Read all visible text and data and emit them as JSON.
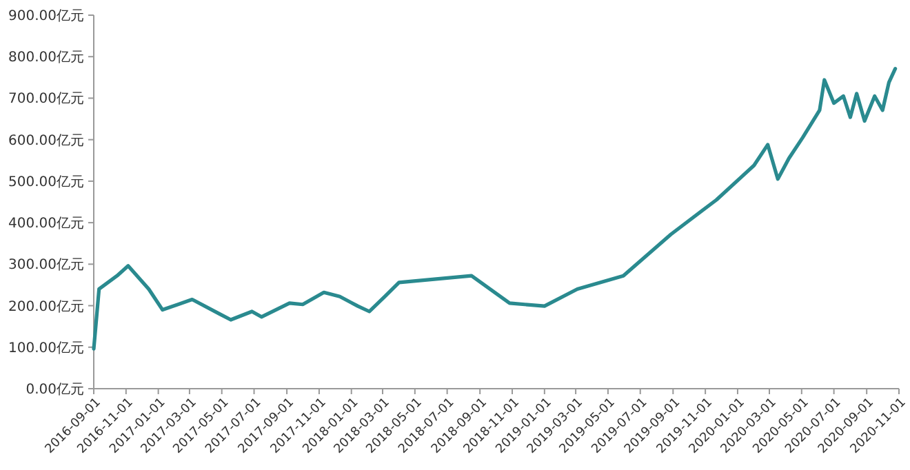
{
  "chart_data": {
    "type": "line",
    "x": [
      "2016-09-01",
      "2016-09-11",
      "2016-10-15",
      "2016-11-05",
      "2016-12-14",
      "2017-01-09",
      "2017-03-06",
      "2017-04-27",
      "2017-05-18",
      "2017-06-27",
      "2017-07-15",
      "2017-09-06",
      "2017-10-01",
      "2017-11-10",
      "2017-12-10",
      "2018-01-13",
      "2018-02-04",
      "2018-03-05",
      "2018-04-01",
      "2018-08-16",
      "2018-10-27",
      "2019-01-01",
      "2019-03-04",
      "2019-05-30",
      "2019-08-28",
      "2019-11-22",
      "2020-02-01",
      "2020-02-27",
      "2020-03-17",
      "2020-04-07",
      "2020-05-03",
      "2020-06-04",
      "2020-06-13",
      "2020-07-01",
      "2020-07-19",
      "2020-08-01",
      "2020-08-13",
      "2020-08-28",
      "2020-09-16",
      "2020-10-01",
      "2020-10-13",
      "2020-10-25"
    ],
    "series": [
      {
        "color": "#2a8a8f",
        "values": [
          96,
          240,
          272,
          296,
          240,
          190,
          215,
          180,
          166,
          186,
          173,
          206,
          203,
          232,
          222,
          199,
          186,
          222,
          256,
          272,
          206,
          199,
          240,
          272,
          372,
          455,
          538,
          588,
          505,
          555,
          605,
          671,
          744,
          688,
          705,
          654,
          711,
          645,
          705,
          671,
          738,
          771
        ]
      }
    ],
    "xlim": [
      "2016-09-01",
      "2020-11-01"
    ],
    "xticks": [
      "2016-09-01",
      "2016-11-01",
      "2017-01-01",
      "2017-03-01",
      "2017-05-01",
      "2017-07-01",
      "2017-09-01",
      "2017-11-01",
      "2018-01-01",
      "2018-03-01",
      "2018-05-01",
      "2018-07-01",
      "2018-09-01",
      "2018-11-01",
      "2019-01-01",
      "2019-03-01",
      "2019-05-01",
      "2019-07-01",
      "2019-09-01",
      "2019-11-01",
      "2020-01-01",
      "2020-03-01",
      "2020-05-01",
      "2020-07-01",
      "2020-09-01",
      "2020-11-01"
    ],
    "ylim": [
      0,
      900
    ],
    "yticks": [
      {
        "value": 0,
        "label": "0.00亿元"
      },
      {
        "value": 100,
        "label": "100.00亿元"
      },
      {
        "value": 200,
        "label": "200.00亿元"
      },
      {
        "value": 300,
        "label": "300.00亿元"
      },
      {
        "value": 400,
        "label": "400.00亿元"
      },
      {
        "value": 500,
        "label": "500.00亿元"
      },
      {
        "value": 600,
        "label": "600.00亿元"
      },
      {
        "value": 700,
        "label": "700.00亿元"
      },
      {
        "value": 800,
        "label": "800.00亿元"
      },
      {
        "value": 900,
        "label": "900.00亿元"
      }
    ],
    "marker": "none",
    "line_style": "solid"
  }
}
